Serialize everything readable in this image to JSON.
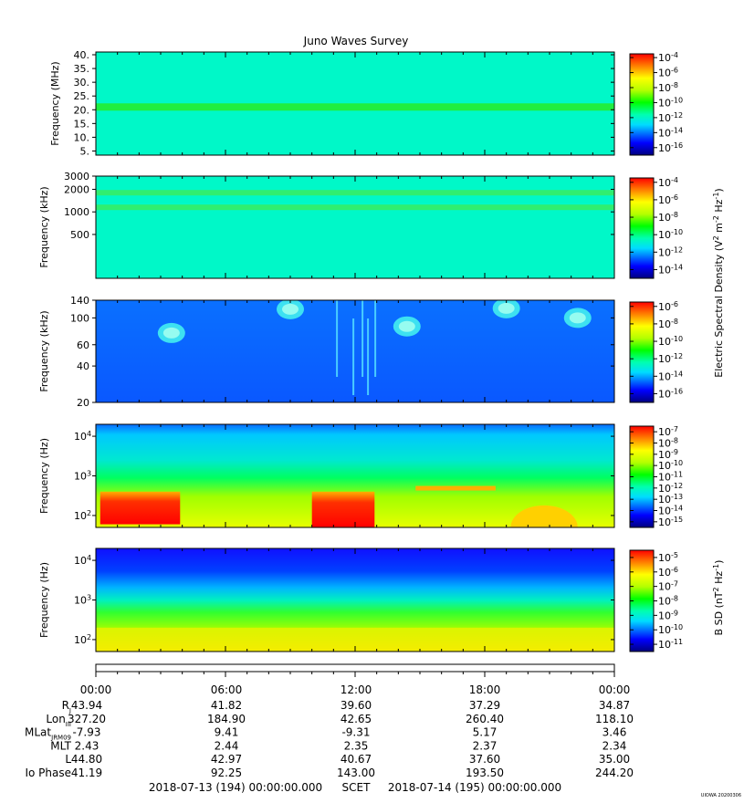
{
  "title": "Juno Waves Survey",
  "chart_data": [
    {
      "type": "heatmap",
      "panel": "E-field high frequency",
      "ylabel": "Frequency (MHz)",
      "yscale": "linear",
      "ylim": [
        3.5,
        41
      ],
      "yticks": [
        "40.",
        "35.",
        "30.",
        "25.",
        "20.",
        "15.",
        "10.",
        "5."
      ],
      "ytick_values": [
        40,
        35,
        30,
        25,
        20,
        15,
        10,
        5
      ],
      "colorbar": {
        "exponents": [
          "-4",
          "-6",
          "-8",
          "-10",
          "-12",
          "-14",
          "-16"
        ],
        "min_exp": -17,
        "max_exp": -3.5
      },
      "features": [
        {
          "kind": "band",
          "freq": 21,
          "level": "10^-10"
        }
      ]
    },
    {
      "type": "heatmap",
      "panel": "E-field medium frequency",
      "ylabel": "Frequency (kHz)",
      "yscale": "log",
      "ylim": [
        130,
        3000
      ],
      "yticks": [
        "3000",
        "2000",
        "1000",
        "500"
      ],
      "ytick_values": [
        3000,
        2000,
        1000,
        500
      ],
      "colorbar": {
        "exponents": [
          "-4",
          "-6",
          "-8",
          "-10",
          "-12",
          "-14"
        ],
        "min_exp": -15,
        "max_exp": -3.5
      },
      "features": [
        {
          "kind": "band",
          "freq": 1800,
          "level": "10^-10"
        },
        {
          "kind": "band",
          "freq": 1150,
          "level": "10^-10"
        }
      ]
    },
    {
      "type": "heatmap",
      "panel": "E-field low frequency",
      "ylabel": "Frequency (kHz)",
      "yscale": "log",
      "ylim": [
        20,
        140
      ],
      "yticks": [
        "140",
        "100",
        "60",
        "40",
        "20"
      ],
      "ytick_values": [
        140,
        100,
        60,
        40,
        20
      ],
      "colorbar": {
        "exponents": [
          "-6",
          "-8",
          "-10",
          "-12",
          "-14",
          "-16"
        ],
        "min_exp": -17,
        "max_exp": -5.5
      },
      "features": [
        {
          "kind": "blob",
          "time_h": 3.5,
          "freq": 75,
          "level": "10^-12"
        },
        {
          "kind": "blob",
          "time_h": 9.0,
          "freq": 118,
          "level": "10^-12"
        },
        {
          "kind": "blob",
          "time_h": 14.4,
          "freq": 85,
          "level": "10^-12"
        },
        {
          "kind": "blob",
          "time_h": 19.0,
          "freq": 120,
          "level": "10^-12"
        },
        {
          "kind": "blob",
          "time_h": 22.3,
          "freq": 100,
          "level": "10^-12"
        },
        {
          "kind": "burst",
          "time_h": 12.3,
          "freq_range": [
            20,
            140
          ],
          "level": "10^-12"
        }
      ]
    },
    {
      "type": "heatmap",
      "panel": "E-field waveform",
      "ylabel": "Frequency (Hz)",
      "yscale": "log",
      "ylim": [
        50,
        20000
      ],
      "yticks": [
        "10^4",
        "10^3",
        "10^2"
      ],
      "ytick_values": [
        10000,
        1000,
        100
      ],
      "colorbar": {
        "exponents": [
          "-7",
          "-8",
          "-9",
          "-10",
          "-11",
          "-12",
          "-13",
          "-14",
          "-15"
        ],
        "min_exp": -15.5,
        "max_exp": -6.5
      },
      "features": [
        {
          "kind": "band",
          "time_range_h": [
            0.2,
            3.9
          ],
          "freq_range": [
            60,
            400
          ],
          "level": "10^-7"
        },
        {
          "kind": "band",
          "time_range_h": [
            10.0,
            12.9
          ],
          "freq_range": [
            50,
            400
          ],
          "level": "10^-7"
        },
        {
          "kind": "band",
          "time_range_h": [
            19.2,
            22.3
          ],
          "freq_range": [
            50,
            180
          ],
          "level": "10^-9"
        },
        {
          "kind": "line",
          "freq": 500,
          "time_range_h": [
            14.8,
            18.5
          ],
          "level": "10^-9"
        }
      ]
    },
    {
      "type": "heatmap",
      "panel": "B-field waveform",
      "ylabel": "Frequency (Hz)",
      "yscale": "log",
      "ylim": [
        50,
        20000
      ],
      "yticks": [
        "10^4",
        "10^3",
        "10^2"
      ],
      "ytick_values": [
        10000,
        1000,
        100
      ],
      "colorbar": {
        "exponents": [
          "-5",
          "-6",
          "-7",
          "-8",
          "-9",
          "-10",
          "-11"
        ],
        "min_exp": -11.5,
        "max_exp": -4.5
      },
      "features": [
        {
          "kind": "band",
          "time_range_h": [
            0,
            24
          ],
          "freq_range": [
            50,
            200
          ],
          "level": "10^-6"
        }
      ]
    }
  ],
  "colorbar_labels": {
    "electric": "Electric Spectral Density (V^2 m^-2 Hz^-1)",
    "magnetic": "B SD (nT^2 Hz^-1)"
  },
  "ephemeris": {
    "time_labels": [
      "00:00",
      "06:00",
      "12:00",
      "18:00",
      "00:00"
    ],
    "rows": [
      {
        "label": "R",
        "sub": "J",
        "values": [
          "43.94",
          "41.82",
          "39.60",
          "37.29",
          "34.87"
        ]
      },
      {
        "label": "Lon",
        "sub": "III",
        "values": [
          "327.20",
          "184.90",
          "42.65",
          "260.40",
          "118.10"
        ]
      },
      {
        "label": "MLat",
        "sub": "JRM09",
        "values": [
          "-7.93",
          "9.41",
          "-9.31",
          "5.17",
          "3.46"
        ]
      },
      {
        "label": "MLT",
        "sub": "",
        "values": [
          "2.43",
          "2.44",
          "2.35",
          "2.37",
          "2.34"
        ]
      },
      {
        "label": "L",
        "sub": "",
        "values": [
          "44.80",
          "42.97",
          "40.67",
          "37.60",
          "35.00"
        ]
      },
      {
        "label": "Io Phase",
        "sub": "",
        "values": [
          "41.19",
          "92.25",
          "143.00",
          "193.50",
          "244.20"
        ]
      }
    ]
  },
  "footer": {
    "start": "2018-07-13 (194) 00:00:00.000",
    "scet": "SCET",
    "end": "2018-07-14 (195) 00:00:00.000",
    "stamp": "UIOWA 20200306"
  }
}
